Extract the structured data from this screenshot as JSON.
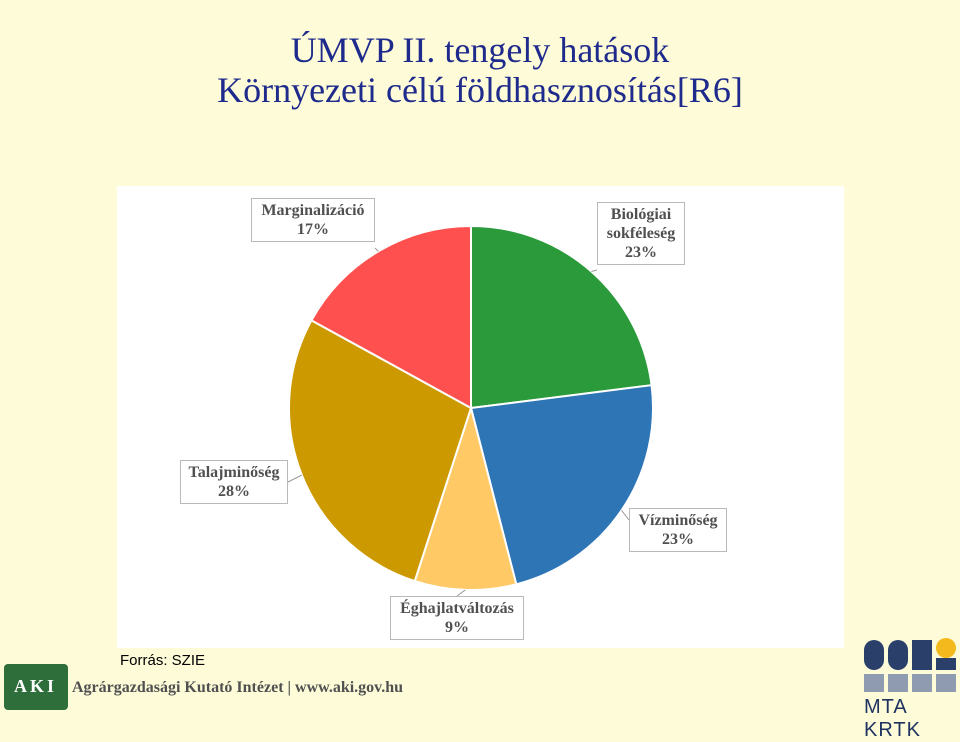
{
  "title": {
    "line1": "ÚMVP II. tengely hatások",
    "line2": "Környezeti célú földhasznosítás[R6]"
  },
  "chart_data": {
    "type": "pie",
    "slices": [
      {
        "label": "Biológiai sokféleség",
        "label_lines": [
          "Biológiai",
          "sokféleség"
        ],
        "value": 23,
        "value_label": "23%",
        "color": "#2a9a3b"
      },
      {
        "label": "Vízminőség",
        "label_lines": [
          "Vízminőség"
        ],
        "value": 23,
        "value_label": "23%",
        "color": "#2e75b6"
      },
      {
        "label": "Éghajlatváltozás",
        "label_lines": [
          "Éghajlatváltozás"
        ],
        "value": 9,
        "value_label": "9%",
        "color": "#ffc966"
      },
      {
        "label": "Talajminőség",
        "label_lines": [
          "Talajminőség"
        ],
        "value": 28,
        "value_label": "28%",
        "color": "#cc9a00"
      },
      {
        "label": "Marginalizáció",
        "label_lines": [
          "Marginalizáció"
        ],
        "value": 17,
        "value_label": "17%",
        "color": "#ff5050"
      }
    ],
    "start": "12 o'clock",
    "direction": "clockwise"
  },
  "source": "Forrás: SZIE",
  "footer": {
    "aki_logo_text": "AKI",
    "aki_text": "Agrárgazdasági Kutató Intézet | www.aki.gov.hu",
    "mta_text": "MTA KRTK"
  }
}
